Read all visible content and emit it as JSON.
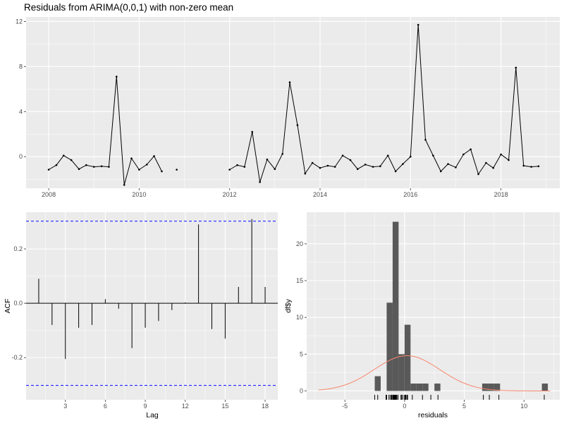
{
  "chart_data": [
    {
      "type": "line",
      "title": "Residuals from ARIMA(0,0,1) with non-zero mean",
      "xlabel": "",
      "ylabel": "",
      "xlim": [
        2007.5,
        2019.3
      ],
      "ylim": [
        -2.8,
        12.4
      ],
      "x_ticks": [
        "2008",
        "2010",
        "2012",
        "2014",
        "2016",
        "2018"
      ],
      "y_ticks": [
        "0",
        "4",
        "8",
        "12"
      ],
      "series": [
        {
          "x": [
            2008.0,
            2008.17,
            2008.33,
            2008.5,
            2008.67,
            2008.83,
            2009.0,
            2009.17,
            2009.33,
            2009.5,
            2009.67,
            2009.83,
            2010.0,
            2010.17,
            2010.33,
            2010.5,
            2010.67,
            2010.83,
            2011.0,
            2011.17,
            2011.33,
            2011.5,
            2011.67,
            2011.83,
            2012.0,
            2012.17,
            2012.33,
            2012.5,
            2012.67,
            2012.83,
            2013.0,
            2013.17,
            2013.33,
            2013.5,
            2013.67,
            2013.83,
            2014.0,
            2014.17,
            2014.33,
            2014.5,
            2014.67,
            2014.83,
            2015.0,
            2015.17,
            2015.33,
            2015.5,
            2015.67,
            2015.83,
            2016.0,
            2016.17,
            2016.33,
            2016.5,
            2016.67,
            2016.83,
            2017.0,
            2017.17,
            2017.33,
            2017.5,
            2017.67,
            2017.83,
            2018.0,
            2018.17,
            2018.33,
            2018.5,
            2018.67,
            2018.83
          ],
          "y": [
            -1.15,
            -0.75,
            0.1,
            -0.3,
            -1.1,
            -0.75,
            -0.9,
            -0.85,
            -0.9,
            7.1,
            -2.5,
            -0.15,
            -1.15,
            -0.7,
            0.05,
            -1.3,
            null,
            -1.15,
            null,
            null,
            null,
            null,
            null,
            null,
            -1.15,
            -0.75,
            -0.9,
            2.2,
            -2.25,
            -0.25,
            -1.1,
            0.25,
            6.6,
            2.8,
            -1.5,
            -0.55,
            -1.0,
            -0.8,
            -0.9,
            0.1,
            -0.3,
            -1.1,
            -0.7,
            -0.9,
            -0.85,
            0.1,
            -1.3,
            -0.65,
            0.0,
            11.7,
            1.5,
            0.1,
            -1.3,
            -0.65,
            -0.95,
            0.2,
            0.65,
            -1.55,
            -0.55,
            -1.0,
            0.2,
            -0.3,
            7.9,
            -0.8,
            -0.9,
            -0.85
          ]
        }
      ]
    },
    {
      "type": "bar",
      "xlabel": "Lag",
      "ylabel": "ACF",
      "xlim": [
        0.05,
        18.95
      ],
      "ylim": [
        -0.355,
        0.335
      ],
      "x_ticks": [
        "3",
        "6",
        "9",
        "12",
        "15",
        "18"
      ],
      "y_ticks": [
        "-0.2",
        "0.0",
        "0.2"
      ],
      "confidence_bound": 0.302,
      "lags": [
        1,
        2,
        3,
        4,
        5,
        6,
        7,
        8,
        9,
        10,
        11,
        12,
        13,
        14,
        15,
        16,
        17,
        18
      ],
      "values": [
        0.09,
        -0.08,
        -0.205,
        -0.09,
        -0.08,
        0.015,
        -0.02,
        -0.165,
        -0.09,
        -0.065,
        -0.025,
        0.003,
        0.29,
        -0.095,
        -0.13,
        0.06,
        0.31,
        0.06
      ]
    },
    {
      "type": "bar",
      "xlabel": "residuals",
      "ylabel": "df$y",
      "xlim": [
        -8.2,
        13.0
      ],
      "ylim": [
        -1.2,
        24.3
      ],
      "x_ticks": [
        "-5",
        "0",
        "5",
        "10"
      ],
      "y_ticks": [
        "0",
        "5",
        "10",
        "15",
        "20"
      ],
      "bin_width": 0.5,
      "bin_starts": [
        -3.0,
        -2.5,
        -2.0,
        -1.5,
        -1.0,
        -0.5,
        0.0,
        0.5,
        1.0,
        1.5,
        2.0,
        2.5,
        3.0,
        3.5,
        4.0,
        4.5,
        5.0,
        5.5,
        6.0,
        6.5,
        7.0,
        7.5,
        8.0,
        8.5,
        9.0,
        9.5,
        10.0,
        10.5,
        11.0,
        11.5
      ],
      "counts": [
        0,
        2,
        0,
        12,
        23,
        5,
        9,
        1,
        1,
        1,
        0,
        1,
        0,
        0,
        0,
        0,
        0,
        0,
        0,
        1,
        1,
        1,
        0,
        0,
        0,
        0,
        0,
        0,
        0,
        1
      ],
      "rug": [
        -2.5,
        -2.25,
        -1.55,
        -1.5,
        -1.3,
        -1.3,
        -1.15,
        -1.15,
        -1.1,
        -1.1,
        -1.0,
        -1.0,
        -0.95,
        -0.9,
        -0.9,
        -0.9,
        -0.85,
        -0.85,
        -0.8,
        -0.75,
        -0.75,
        -0.7,
        -0.65,
        -0.55,
        -0.3,
        -0.25,
        -0.15,
        0.0,
        0.05,
        0.1,
        0.1,
        0.1,
        0.2,
        0.25,
        0.65,
        1.5,
        2.2,
        2.8,
        6.6,
        7.1,
        7.9,
        11.7
      ],
      "density_curve": {
        "mean": 0.2,
        "sd": 2.75,
        "n": 66,
        "xlim": [
          -7.2,
          12.2
        ]
      }
    }
  ]
}
